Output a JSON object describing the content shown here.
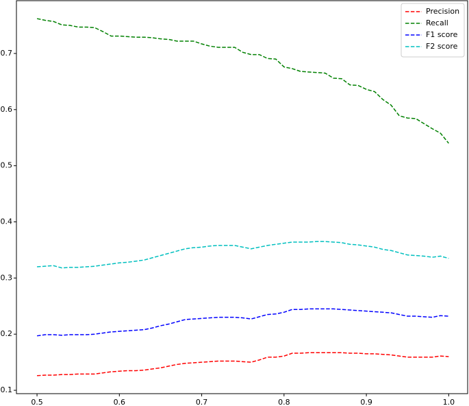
{
  "chart_data": {
    "type": "line",
    "x": [
      0.5,
      0.51,
      0.52,
      0.53,
      0.54,
      0.55,
      0.56,
      0.57,
      0.58,
      0.59,
      0.6,
      0.61,
      0.62,
      0.63,
      0.64,
      0.65,
      0.66,
      0.67,
      0.68,
      0.69,
      0.7,
      0.71,
      0.72,
      0.73,
      0.74,
      0.75,
      0.76,
      0.77,
      0.78,
      0.79,
      0.8,
      0.81,
      0.82,
      0.83,
      0.84,
      0.85,
      0.86,
      0.87,
      0.88,
      0.89,
      0.9,
      0.91,
      0.92,
      0.93,
      0.94,
      0.95,
      0.96,
      0.97,
      0.98,
      0.99,
      1.0
    ],
    "series": [
      {
        "name": "Precision",
        "color": "#ff0000",
        "values": [
          0.126,
          0.127,
          0.127,
          0.128,
          0.128,
          0.129,
          0.129,
          0.129,
          0.131,
          0.133,
          0.134,
          0.135,
          0.135,
          0.136,
          0.138,
          0.14,
          0.143,
          0.146,
          0.148,
          0.149,
          0.15,
          0.151,
          0.152,
          0.152,
          0.152,
          0.151,
          0.15,
          0.154,
          0.159,
          0.159,
          0.161,
          0.166,
          0.166,
          0.167,
          0.167,
          0.167,
          0.167,
          0.167,
          0.166,
          0.166,
          0.165,
          0.165,
          0.164,
          0.163,
          0.161,
          0.159,
          0.159,
          0.159,
          0.159,
          0.161,
          0.16
        ]
      },
      {
        "name": "Recall",
        "color": "#008000",
        "values": [
          0.762,
          0.759,
          0.757,
          0.751,
          0.75,
          0.747,
          0.747,
          0.746,
          0.739,
          0.731,
          0.731,
          0.73,
          0.729,
          0.729,
          0.728,
          0.726,
          0.725,
          0.722,
          0.722,
          0.722,
          0.717,
          0.713,
          0.711,
          0.711,
          0.711,
          0.702,
          0.698,
          0.698,
          0.691,
          0.69,
          0.676,
          0.673,
          0.668,
          0.667,
          0.666,
          0.665,
          0.656,
          0.655,
          0.644,
          0.643,
          0.636,
          0.632,
          0.618,
          0.608,
          0.589,
          0.585,
          0.584,
          0.575,
          0.566,
          0.558,
          0.54
        ]
      },
      {
        "name": "F1 score",
        "color": "#0000ff",
        "values": [
          0.197,
          0.199,
          0.199,
          0.198,
          0.199,
          0.199,
          0.199,
          0.2,
          0.202,
          0.204,
          0.205,
          0.206,
          0.207,
          0.208,
          0.211,
          0.215,
          0.218,
          0.222,
          0.226,
          0.227,
          0.228,
          0.229,
          0.23,
          0.23,
          0.23,
          0.229,
          0.227,
          0.231,
          0.235,
          0.236,
          0.239,
          0.244,
          0.244,
          0.245,
          0.245,
          0.245,
          0.245,
          0.244,
          0.243,
          0.242,
          0.241,
          0.24,
          0.239,
          0.238,
          0.235,
          0.232,
          0.232,
          0.231,
          0.23,
          0.233,
          0.232
        ]
      },
      {
        "name": "F2 score",
        "color": "#00bfbf",
        "values": [
          0.32,
          0.321,
          0.322,
          0.318,
          0.319,
          0.319,
          0.32,
          0.321,
          0.323,
          0.325,
          0.327,
          0.328,
          0.33,
          0.332,
          0.336,
          0.34,
          0.344,
          0.348,
          0.352,
          0.354,
          0.355,
          0.357,
          0.358,
          0.358,
          0.358,
          0.355,
          0.352,
          0.355,
          0.358,
          0.36,
          0.362,
          0.364,
          0.364,
          0.364,
          0.365,
          0.365,
          0.364,
          0.363,
          0.36,
          0.359,
          0.357,
          0.355,
          0.351,
          0.349,
          0.345,
          0.341,
          0.34,
          0.339,
          0.337,
          0.339,
          0.335
        ]
      }
    ],
    "xlim": [
      0.475,
      1.023
    ],
    "xticks": [
      0.5,
      0.6,
      0.7,
      0.8,
      0.9,
      {
        "value": 1,
        "label": "1.0"
      }
    ],
    "ylim": [
      0.094,
      0.794
    ],
    "yticks": [
      0.1,
      0.2,
      0.3,
      0.4,
      0.5,
      0.6,
      0.7
    ],
    "legend": "upper right",
    "line_style": "dashed"
  }
}
